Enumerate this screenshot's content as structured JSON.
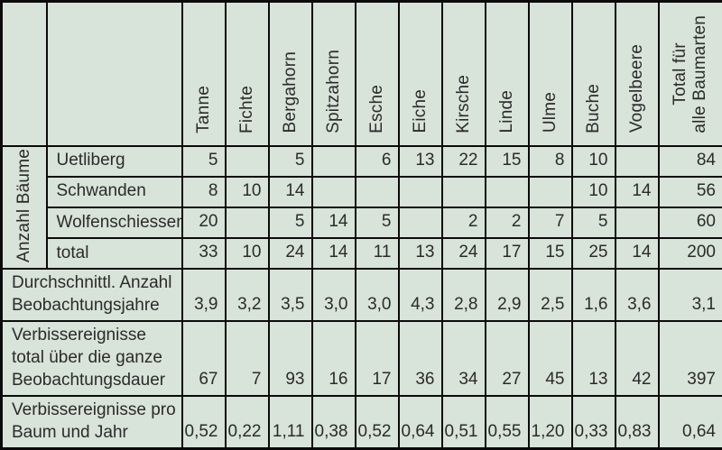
{
  "accent_colors": {
    "table_background": "#d8e3d9",
    "grid_line": "#0b0b0b",
    "text": "#2b2b2b"
  },
  "table": {
    "header": {
      "columns": [
        "Tanne",
        "Fichte",
        "Bergahorn",
        "Spitzahorn",
        "Esche",
        "Eiche",
        "Kirsche",
        "Linde",
        "Ulme",
        "Buche",
        "Vogelbeere"
      ],
      "total_label": "Total für\nalle Baumarten"
    },
    "group": {
      "label": "Anzahl Bäume",
      "rows": [
        {
          "label": "Uetliberg",
          "values": [
            "5",
            "",
            "5",
            "",
            "6",
            "13",
            "22",
            "15",
            "8",
            "10",
            "",
            "84"
          ]
        },
        {
          "label": "Schwanden",
          "values": [
            "8",
            "10",
            "14",
            "",
            "",
            "",
            "",
            "",
            "",
            "10",
            "14",
            "56"
          ]
        },
        {
          "label": "Wolfenschiessen",
          "values": [
            "20",
            "",
            "5",
            "14",
            "5",
            "",
            "2",
            "2",
            "7",
            "5",
            "",
            "60"
          ]
        },
        {
          "label": "total",
          "values": [
            "33",
            "10",
            "24",
            "14",
            "11",
            "13",
            "24",
            "17",
            "15",
            "25",
            "14",
            "200"
          ]
        }
      ]
    },
    "summary_rows": [
      {
        "label": "Durchschnittl. Anzahl\nBeobachtungsjahre",
        "values": [
          "3,9",
          "3,2",
          "3,5",
          "3,0",
          "3,0",
          "4,3",
          "2,8",
          "2,9",
          "2,5",
          "1,6",
          "3,6",
          "3,1"
        ]
      },
      {
        "label": "Verbissereignisse\ntotal über die ganze\nBeobachtungsdauer",
        "values": [
          "67",
          "7",
          "93",
          "16",
          "17",
          "36",
          "34",
          "27",
          "45",
          "13",
          "42",
          "397"
        ]
      },
      {
        "label": "Verbissereignisse pro\nBaum und Jahr",
        "values": [
          "0,52",
          "0,22",
          "1,11",
          "0,38",
          "0,52",
          "0,64",
          "0,51",
          "0,55",
          "1,20",
          "0,33",
          "0,83",
          "0,64"
        ]
      }
    ]
  },
  "chart_data": {
    "type": "table",
    "title": "",
    "columns": [
      "Tanne",
      "Fichte",
      "Bergahorn",
      "Spitzahorn",
      "Esche",
      "Eiche",
      "Kirsche",
      "Linde",
      "Ulme",
      "Buche",
      "Vogelbeere",
      "Total für alle Baumarten"
    ],
    "rows": [
      {
        "group": "Anzahl Bäume",
        "label": "Uetliberg",
        "values": [
          5,
          null,
          5,
          null,
          6,
          13,
          22,
          15,
          8,
          10,
          null,
          84
        ]
      },
      {
        "group": "Anzahl Bäume",
        "label": "Schwanden",
        "values": [
          8,
          10,
          14,
          null,
          null,
          null,
          null,
          null,
          null,
          10,
          14,
          56
        ]
      },
      {
        "group": "Anzahl Bäume",
        "label": "Wolfenschiessen",
        "values": [
          20,
          null,
          5,
          14,
          5,
          null,
          2,
          2,
          7,
          5,
          null,
          60
        ]
      },
      {
        "group": "Anzahl Bäume",
        "label": "total",
        "values": [
          33,
          10,
          24,
          14,
          11,
          13,
          24,
          17,
          15,
          25,
          14,
          200
        ]
      },
      {
        "group": "",
        "label": "Durchschnittl. Anzahl Beobachtungsjahre",
        "values": [
          3.9,
          3.2,
          3.5,
          3.0,
          3.0,
          4.3,
          2.8,
          2.9,
          2.5,
          1.6,
          3.6,
          3.1
        ]
      },
      {
        "group": "",
        "label": "Verbissereignisse total über die ganze Beobachtungsdauer",
        "values": [
          67,
          7,
          93,
          16,
          17,
          36,
          34,
          27,
          45,
          13,
          42,
          397
        ]
      },
      {
        "group": "",
        "label": "Verbissereignisse pro Baum und Jahr",
        "values": [
          0.52,
          0.22,
          1.11,
          0.38,
          0.52,
          0.64,
          0.51,
          0.55,
          1.2,
          0.33,
          0.83,
          0.64
        ]
      }
    ],
    "layout": {
      "decimal_separator": ",",
      "grid": true
    }
  }
}
